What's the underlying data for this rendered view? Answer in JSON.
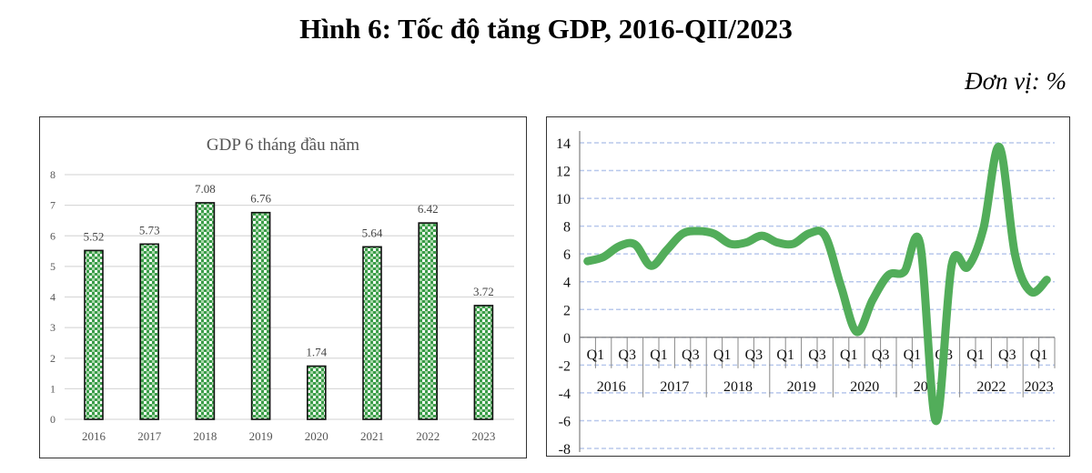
{
  "title": "Hình 6: Tốc độ tăng GDP, 2016-QII/2023",
  "unit": "Đơn vị: %",
  "colors": {
    "bar_fill": "#3a9c48",
    "line": "#52ad5a",
    "grid_right": "#b8c8ec",
    "grid_left": "#d9d9d9"
  },
  "chart_data": [
    {
      "type": "bar",
      "title": "GDP 6 tháng  đầu năm",
      "categories": [
        "2016",
        "2017",
        "2018",
        "2019",
        "2020",
        "2021",
        "2022",
        "2023"
      ],
      "values": [
        5.52,
        5.73,
        7.08,
        6.76,
        1.74,
        5.64,
        6.42,
        3.72
      ],
      "data_labels": [
        "5.52",
        "5.73",
        "7.08",
        "6.76",
        "1.74",
        "5.64",
        "6.42",
        "3.72"
      ],
      "ylim": [
        0,
        8
      ],
      "yticks": [
        "0",
        "1",
        "2",
        "3",
        "4",
        "5",
        "6",
        "7",
        "8"
      ],
      "grid": true
    },
    {
      "type": "line",
      "title": "",
      "years": [
        "2016",
        "2017",
        "2018",
        "2019",
        "2020",
        "2021",
        "2022",
        "2023"
      ],
      "quarter_labels": [
        "Q1",
        "Q3"
      ],
      "x": [
        "2016Q1",
        "2016Q2",
        "2016Q3",
        "2016Q4",
        "2017Q1",
        "2017Q2",
        "2017Q3",
        "2017Q4",
        "2018Q1",
        "2018Q2",
        "2018Q3",
        "2018Q4",
        "2019Q1",
        "2019Q2",
        "2019Q3",
        "2019Q4",
        "2020Q1",
        "2020Q2",
        "2020Q3",
        "2020Q4",
        "2021Q1",
        "2021Q2",
        "2021Q3",
        "2021Q4",
        "2022Q1",
        "2022Q2",
        "2022Q3",
        "2022Q4",
        "2023Q1",
        "2023Q2"
      ],
      "values": [
        5.48,
        5.78,
        6.56,
        6.68,
        5.15,
        6.28,
        7.46,
        7.65,
        7.45,
        6.73,
        6.82,
        7.31,
        6.82,
        6.73,
        7.48,
        7.31,
        3.68,
        0.39,
        2.69,
        4.48,
        4.72,
        6.73,
        -6.02,
        5.22,
        5.05,
        7.83,
        13.71,
        5.92,
        3.28,
        4.14
      ],
      "ylim": [
        -8,
        14
      ],
      "yticks": [
        "-8",
        "-6",
        "-4",
        "-2",
        "0",
        "2",
        "4",
        "6",
        "8",
        "10",
        "12",
        "14"
      ],
      "grid": true,
      "grid_style": "dashed"
    }
  ]
}
